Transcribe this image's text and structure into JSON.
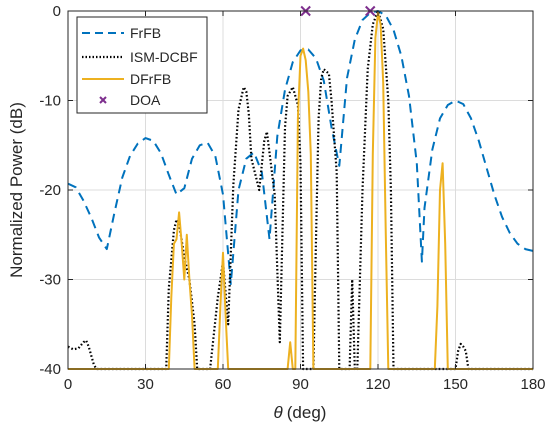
{
  "chart_data": {
    "type": "line",
    "title": "",
    "xlabel_symbol": "θ",
    "xlabel_unit": "(deg)",
    "ylabel": "Normalized Power (dB)",
    "xlim": [
      0,
      180
    ],
    "ylim": [
      -40,
      0
    ],
    "xticks": [
      0,
      30,
      60,
      90,
      120,
      150,
      180
    ],
    "yticks": [
      0,
      -10,
      -20,
      -30,
      -40
    ],
    "grid": true,
    "legend_position": "top-left",
    "series": [
      {
        "name": "FrFB",
        "color": "#0072BD",
        "style": "dashed",
        "x": [
          0,
          3,
          6,
          9,
          12,
          15,
          18,
          21,
          24,
          27,
          30,
          33,
          36,
          39,
          42,
          45,
          48,
          51,
          54,
          57,
          60,
          63,
          66,
          69,
          72,
          75,
          78,
          81,
          84,
          87,
          90,
          93,
          96,
          99,
          102,
          105,
          108,
          111,
          114,
          117,
          120,
          123,
          126,
          129,
          132,
          135,
          137,
          138,
          141,
          144,
          147,
          150,
          153,
          156,
          159,
          162,
          165,
          168,
          171,
          174,
          177,
          180
        ],
        "y": [
          -19.3,
          -19.7,
          -21.2,
          -23.1,
          -25.3,
          -26.6,
          -22.5,
          -18.6,
          -16.2,
          -14.8,
          -14.2,
          -14.5,
          -15.9,
          -18.3,
          -20.5,
          -19.8,
          -16.5,
          -15.0,
          -14.7,
          -16.2,
          -20.5,
          -30.5,
          -20.0,
          -16.5,
          -15.8,
          -18.0,
          -25.5,
          -14.0,
          -8.8,
          -5.7,
          -4.4,
          -4.3,
          -5.3,
          -7.8,
          -13.0,
          -17.3,
          -7.5,
          -3.2,
          -1.0,
          -0.2,
          0.0,
          -0.5,
          -2.1,
          -5.0,
          -9.5,
          -17.0,
          -28.0,
          -22.0,
          -15.5,
          -12.0,
          -10.5,
          -10.0,
          -10.4,
          -12.0,
          -14.5,
          -17.5,
          -20.5,
          -23.0,
          -24.8,
          -26.0,
          -26.6,
          -26.8
        ]
      },
      {
        "name": "ISM-DCBF",
        "color": "#000000",
        "style": "dotted",
        "x": [
          0,
          2,
          4,
          6,
          7,
          8,
          10,
          11,
          12,
          38,
          39,
          41,
          42,
          43,
          45,
          47,
          49,
          50,
          51,
          55,
          58,
          60,
          62,
          64,
          66,
          68,
          69,
          70,
          71,
          74,
          76,
          77,
          80,
          82,
          84,
          85,
          87,
          89,
          90,
          91,
          92,
          93,
          95,
          96,
          97,
          98,
          99,
          101,
          102,
          104,
          105,
          106,
          108,
          109,
          110,
          111,
          112,
          114,
          116,
          118,
          120,
          122,
          124,
          125,
          126,
          128,
          150,
          151,
          152,
          153,
          154,
          155,
          180
        ],
        "y": [
          -37.5,
          -37.8,
          -37.7,
          -37.0,
          -36.8,
          -37.5,
          -39.5,
          -40.0,
          -40.0,
          -40.0,
          -31.0,
          -24.5,
          -23.3,
          -23.8,
          -27.5,
          -30.0,
          -35.0,
          -40.0,
          -40.0,
          -40.0,
          -32.0,
          -28.0,
          -35.0,
          -19.5,
          -11.0,
          -8.5,
          -9.0,
          -11.5,
          -16.5,
          -20.0,
          -14.5,
          -13.5,
          -20.5,
          -37.0,
          -13.0,
          -9.5,
          -8.5,
          -10.5,
          -17.0,
          -40.0,
          -40.0,
          -40.0,
          -40.0,
          -25.5,
          -12.0,
          -7.5,
          -6.5,
          -7.0,
          -10.0,
          -18.0,
          -40.0,
          -40.0,
          -40.0,
          -40.0,
          -30.0,
          -40.0,
          -40.0,
          -20.0,
          -6.5,
          -1.5,
          0.0,
          -2.0,
          -10.0,
          -20.0,
          -40.0,
          -40.0,
          -40.0,
          -38.0,
          -37.2,
          -37.5,
          -38.0,
          -40.0,
          -40.0
        ]
      },
      {
        "name": "DFrFB",
        "color": "#EDB120",
        "style": "solid",
        "x": [
          0,
          39,
          40,
          41,
          42,
          43,
          44,
          45,
          46,
          47,
          48,
          49,
          58,
          59,
          60,
          61,
          62,
          85,
          86,
          87,
          88,
          89,
          90,
          91,
          92,
          93,
          94,
          95,
          96,
          117,
          118,
          119,
          120,
          121,
          122,
          123,
          124,
          142,
          143,
          144,
          145,
          146,
          147,
          180
        ],
        "y": [
          -40.0,
          -40.0,
          -32.0,
          -26.0,
          -25.5,
          -22.5,
          -26.0,
          -30.0,
          -25.0,
          -30.0,
          -34.0,
          -40.0,
          -40.0,
          -33.0,
          -27.0,
          -34.0,
          -40.0,
          -40.0,
          -37.0,
          -40.0,
          -40.0,
          -12.0,
          -5.0,
          -4.2,
          -5.5,
          -9.0,
          -16.0,
          -40.0,
          -40.0,
          -40.0,
          -16.0,
          -3.0,
          -0.2,
          -1.5,
          -8.0,
          -25.0,
          -40.0,
          -40.0,
          -33.0,
          -20.0,
          -17.0,
          -26.0,
          -40.0,
          -40.0
        ]
      }
    ],
    "markers": {
      "name": "DOA",
      "color": "#7E2F8E",
      "symbol": "x",
      "x": [
        92,
        117
      ],
      "y": [
        0,
        0
      ]
    }
  }
}
